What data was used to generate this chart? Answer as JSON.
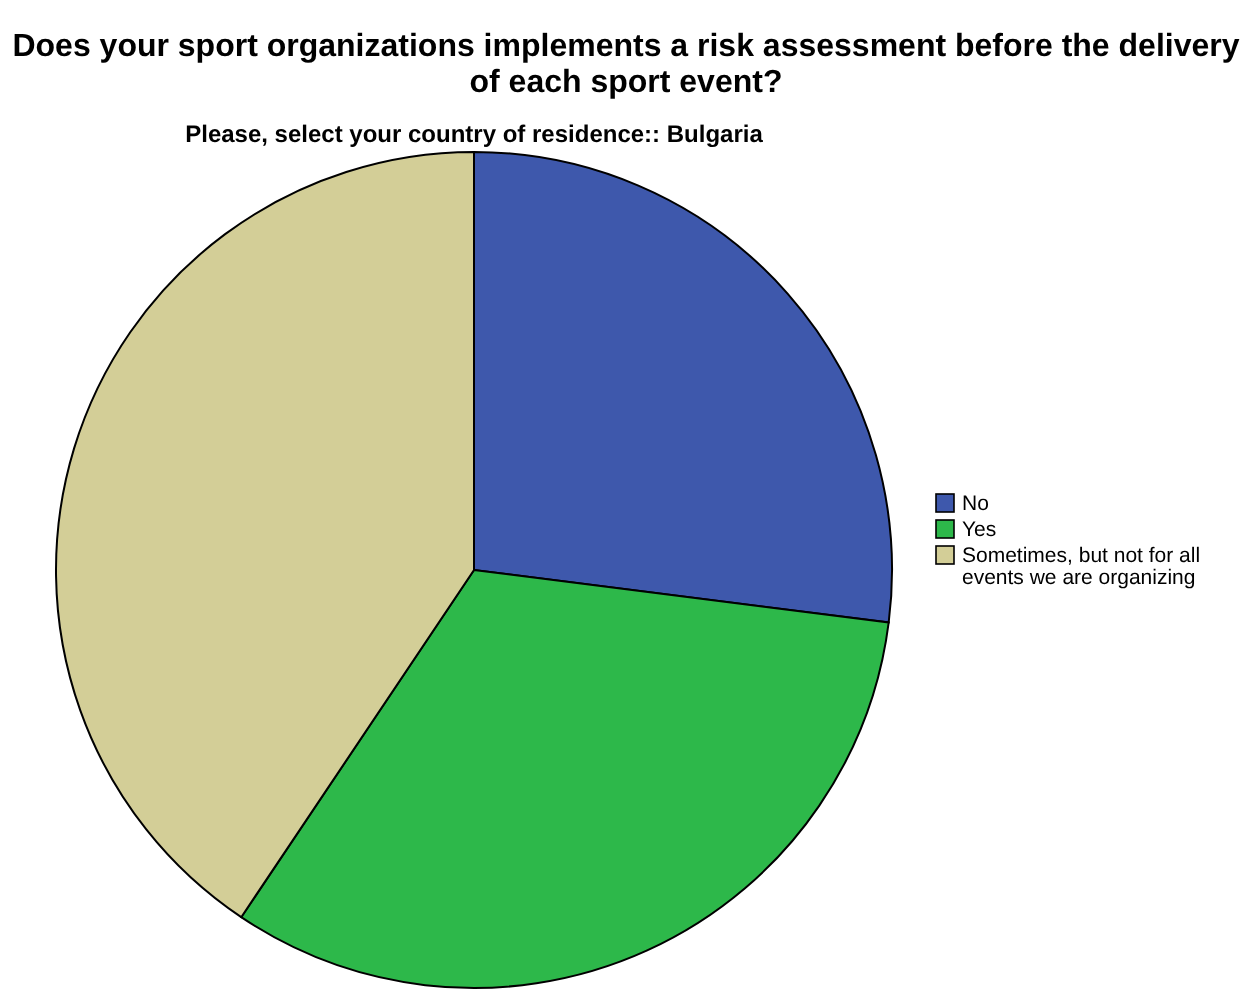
{
  "chart_data": {
    "type": "pie",
    "title": "Does your sport organizations implements a risk assessment before the delivery of each sport event?",
    "subtitle": "Please, select your country of residence:: Bulgaria",
    "categories": [
      "No",
      "Yes",
      "Sometimes, but not for all events we are organizing"
    ],
    "values": [
      27,
      32.4,
      40.6
    ],
    "colors": [
      "#3e58ac",
      "#2db84a",
      "#d3ce97"
    ],
    "legend": "top right"
  }
}
